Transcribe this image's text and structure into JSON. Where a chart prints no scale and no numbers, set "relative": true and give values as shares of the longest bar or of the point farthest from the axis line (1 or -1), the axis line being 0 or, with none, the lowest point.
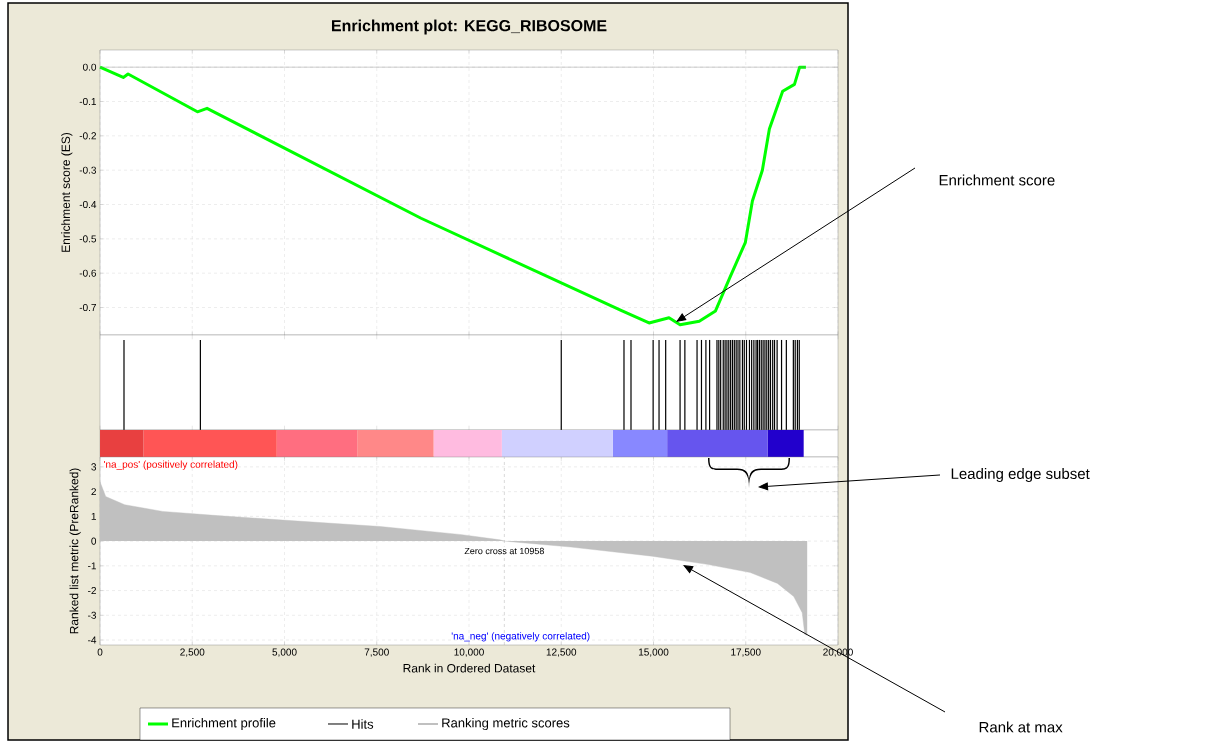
{
  "chart_data": [
    {
      "type": "line",
      "title": "Enrichment plot: KEGG_RIBOSOME",
      "ylabel": "Enrichment score (ES)",
      "series": [
        {
          "name": "Enrichment profile",
          "color": "#00ff00",
          "x": [
            0,
            630,
            760,
            2640,
            2900,
            8700,
            14150,
            14880,
            15420,
            15720,
            16240,
            16680,
            17080,
            17490,
            17680,
            17950,
            18140,
            18500,
            18820,
            18960,
            19130
          ],
          "values": [
            0,
            -0.03,
            -0.02,
            -0.13,
            -0.12,
            -0.44,
            -0.71,
            -0.745,
            -0.73,
            -0.75,
            -0.74,
            -0.71,
            -0.61,
            -0.51,
            -0.39,
            -0.3,
            -0.18,
            -0.07,
            -0.05,
            0.0,
            0.0
          ]
        }
      ],
      "xlim": [
        0,
        20000
      ],
      "xticks": [
        0,
        2500,
        5000,
        7500,
        10000,
        12500,
        15000,
        17500,
        20000
      ],
      "ylim": [
        -0.78,
        0.05
      ],
      "yticks": [
        {
          "value": 0,
          "label": "0.0"
        },
        -0.1,
        -0.2,
        -0.3,
        -0.4,
        -0.5,
        -0.6,
        -0.7
      ],
      "ref_lines": [
        {
          "axis": "y",
          "value": 0,
          "color": "#808080"
        }
      ],
      "annotations": [
        "Enrichment score"
      ],
      "grid": true,
      "tick_labels": "y",
      "legend": "bottom"
    },
    {
      "type": "bar",
      "relative": true,
      "series": [
        {
          "name": "Hits",
          "color": "#000000",
          "x": [
            650,
            2720,
            12500,
            14200,
            14390,
            14990,
            15150,
            15330,
            15720,
            15850,
            16180,
            16300,
            16420,
            16520,
            16720,
            16770,
            16820,
            16890,
            16940,
            16990,
            17040,
            17090,
            17140,
            17190,
            17240,
            17290,
            17340,
            17410,
            17460,
            17520,
            17600,
            17660,
            17720,
            17780,
            17820,
            17870,
            17920,
            17970,
            18020,
            18070,
            18120,
            18170,
            18230,
            18280,
            18350,
            18470,
            18600,
            18790,
            18840,
            18900,
            18950
          ],
          "values": [
            1,
            1,
            1,
            1,
            1,
            1,
            1,
            1,
            1,
            1,
            1,
            1,
            1,
            1,
            1,
            1,
            1,
            1,
            1,
            1,
            1,
            1,
            1,
            1,
            1,
            1,
            1,
            1,
            1,
            1,
            1,
            1,
            1,
            1,
            1,
            1,
            1,
            1,
            1,
            1,
            1,
            1,
            1,
            1,
            1,
            1,
            1,
            1,
            1,
            1,
            1
          ]
        }
      ],
      "xlim": [
        0,
        20000
      ],
      "xticks": [
        0,
        2500,
        5000,
        7500,
        10000,
        12500,
        15000,
        17500,
        20000
      ],
      "annotations": [
        "Leading edge subset"
      ],
      "tick_labels": false,
      "legend": "bottom"
    },
    {
      "type": "bar",
      "orientation": "horizontal",
      "stacked": true,
      "categories": [
        null
      ],
      "series": [
        {
          "color": "#e84040",
          "values": [
            1180
          ]
        },
        {
          "color": "#ff5555",
          "values": [
            3610
          ]
        },
        {
          "color": "#ff6e80",
          "values": [
            2180
          ]
        },
        {
          "color": "#ff8888",
          "values": [
            2070
          ]
        },
        {
          "color": "#ffbbe0",
          "values": [
            1850
          ]
        },
        {
          "color": "#d0d0ff",
          "values": [
            3010
          ]
        },
        {
          "color": "#8888ff",
          "values": [
            1470
          ]
        },
        {
          "color": "#6655ee",
          "values": [
            2720
          ]
        },
        {
          "color": "#2200cc",
          "values": [
            980
          ]
        }
      ],
      "xlim": [
        0,
        20000
      ],
      "tick_labels": false
    },
    {
      "type": "area",
      "xlabel": "Rank in Ordered Dataset",
      "ylabel": "Ranked list metric (PreRanked)",
      "series": [
        {
          "name": "Ranking metric scores",
          "color": "#c0c0c0",
          "x": [
            0,
            155,
            670,
            1700,
            3180,
            4950,
            7600,
            9810,
            10840,
            10958,
            12760,
            14960,
            16450,
            17620,
            18360,
            18800,
            19030,
            19100,
            19160
          ],
          "values": [
            2.4,
            1.8,
            1.47,
            1.2,
            1.03,
            0.85,
            0.59,
            0.26,
            0.05,
            0,
            -0.24,
            -0.61,
            -0.94,
            -1.27,
            -1.71,
            -2.24,
            -2.9,
            -3.77,
            -3.8
          ]
        }
      ],
      "xlim": [
        0,
        20000
      ],
      "xticks": [
        0,
        {
          "value": 2500,
          "label": "2,500"
        },
        {
          "value": 5000,
          "label": "5,000"
        },
        {
          "value": 7500,
          "label": "7,500"
        },
        {
          "value": 10000,
          "label": "10,000"
        },
        {
          "value": 12500,
          "label": "12,500"
        },
        {
          "value": 15000,
          "label": "15,000"
        },
        {
          "value": 17500,
          "label": "17,500"
        },
        {
          "value": 20000,
          "label": "20,000"
        }
      ],
      "ylim": [
        -4.2,
        3.4
      ],
      "yticks": [
        -4,
        -3,
        -2,
        -1,
        0,
        1,
        2,
        3
      ],
      "ref_lines": [
        {
          "axis": "x",
          "value": 10958,
          "label": "Zero cross at 10958",
          "color": "#a0a0a0",
          "line_style": "dashed"
        }
      ],
      "annotations": [
        "'na_pos' (positively correlated)",
        "'na_neg' (negatively correlated)",
        "Rank at max"
      ],
      "grid": true,
      "legend": "bottom"
    }
  ]
}
